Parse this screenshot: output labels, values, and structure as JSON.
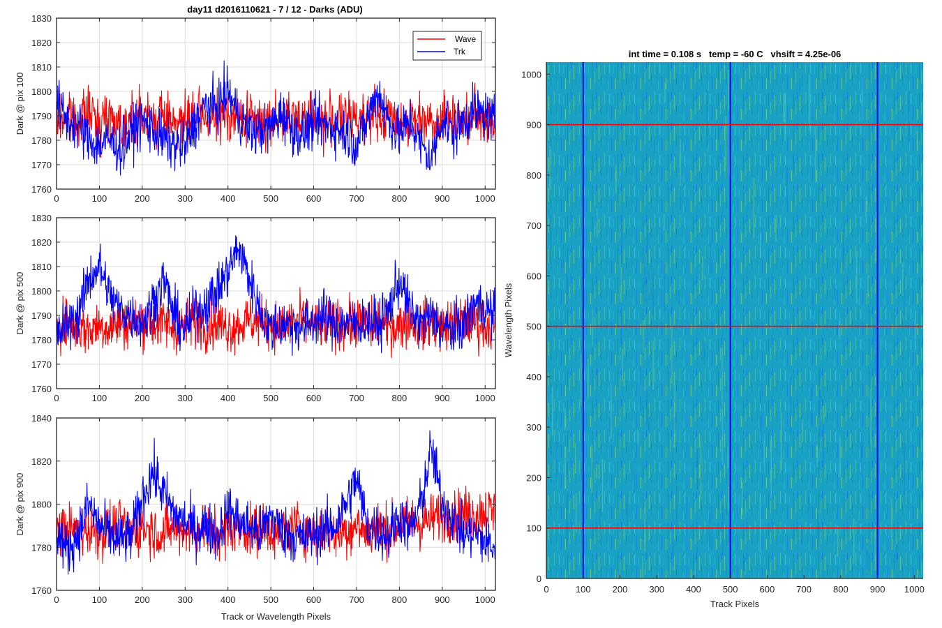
{
  "figure_title": "day11 d2016110621 - 7 / 12 - Darks (ADU)",
  "chart_data": [
    {
      "type": "line",
      "title": "day11 d2016110621 - 7 / 12 - Darks (ADU)",
      "xlabel": "",
      "ylabel": "Dark @ pix 100",
      "xlim": [
        0,
        1024
      ],
      "ylim": [
        1760,
        1830
      ],
      "xticks": [
        0,
        100,
        200,
        300,
        400,
        500,
        600,
        700,
        800,
        900,
        1000
      ],
      "yticks": [
        1760,
        1770,
        1780,
        1790,
        1800,
        1810,
        1820,
        1830
      ],
      "grid": true,
      "legend": "top-right",
      "series": [
        {
          "name": "Wave",
          "color": "#ff0000",
          "x": [
            0,
            25,
            50,
            75,
            100,
            125,
            150,
            175,
            200,
            225,
            250,
            275,
            300,
            325,
            350,
            375,
            400,
            425,
            450,
            475,
            500,
            525,
            550,
            575,
            600,
            625,
            650,
            675,
            700,
            725,
            750,
            775,
            800,
            825,
            850,
            875,
            900,
            925,
            950,
            975,
            1000,
            1023
          ],
          "y": [
            1787,
            1790,
            1789,
            1791,
            1788,
            1790,
            1787,
            1789,
            1791,
            1788,
            1790,
            1789,
            1787,
            1790,
            1788,
            1789,
            1791,
            1788,
            1790,
            1787,
            1789,
            1790,
            1788,
            1791,
            1789,
            1787,
            1790,
            1788,
            1789,
            1791,
            1788,
            1790,
            1789,
            1787,
            1790,
            1788,
            1789,
            1791,
            1788,
            1790,
            1789,
            1788
          ]
        },
        {
          "name": "Trk",
          "color": "#0000ff",
          "x": [
            0,
            25,
            50,
            75,
            100,
            125,
            150,
            175,
            200,
            225,
            250,
            275,
            300,
            325,
            350,
            375,
            400,
            425,
            450,
            475,
            500,
            525,
            550,
            575,
            600,
            625,
            650,
            675,
            700,
            725,
            750,
            775,
            800,
            825,
            850,
            875,
            900,
            925,
            950,
            975,
            1000,
            1023
          ],
          "y": [
            1795,
            1788,
            1786,
            1780,
            1778,
            1780,
            1776,
            1783,
            1788,
            1784,
            1780,
            1778,
            1777,
            1788,
            1795,
            1793,
            1800,
            1790,
            1784,
            1784,
            1785,
            1791,
            1785,
            1782,
            1788,
            1786,
            1785,
            1783,
            1778,
            1788,
            1800,
            1788,
            1782,
            1788,
            1778,
            1772,
            1790,
            1782,
            1788,
            1792,
            1790,
            1787
          ]
        }
      ]
    },
    {
      "type": "line",
      "title": "",
      "xlabel": "",
      "ylabel": "Dark @ pix 500",
      "xlim": [
        0,
        1024
      ],
      "ylim": [
        1760,
        1830
      ],
      "xticks": [
        0,
        100,
        200,
        300,
        400,
        500,
        600,
        700,
        800,
        900,
        1000
      ],
      "yticks": [
        1760,
        1770,
        1780,
        1790,
        1800,
        1810,
        1820,
        1830
      ],
      "grid": true,
      "series": [
        {
          "name": "Wave",
          "color": "#ff0000",
          "x": [
            0,
            25,
            50,
            75,
            100,
            125,
            150,
            175,
            200,
            225,
            250,
            275,
            300,
            325,
            350,
            375,
            400,
            425,
            450,
            475,
            500,
            525,
            550,
            575,
            600,
            625,
            650,
            675,
            700,
            725,
            750,
            775,
            800,
            825,
            850,
            875,
            900,
            925,
            950,
            975,
            1000,
            1023
          ],
          "y": [
            1786,
            1787,
            1785,
            1784,
            1786,
            1785,
            1787,
            1786,
            1788,
            1786,
            1787,
            1785,
            1786,
            1788,
            1786,
            1787,
            1785,
            1786,
            1788,
            1787,
            1786,
            1785,
            1787,
            1788,
            1786,
            1785,
            1787,
            1786,
            1788,
            1786,
            1787,
            1785,
            1786,
            1788,
            1786,
            1787,
            1785,
            1786,
            1788,
            1787,
            1786,
            1785
          ]
        },
        {
          "name": "Trk",
          "color": "#0000ff",
          "x": [
            0,
            25,
            50,
            75,
            100,
            125,
            150,
            175,
            200,
            225,
            250,
            275,
            300,
            325,
            350,
            375,
            400,
            425,
            450,
            475,
            500,
            525,
            550,
            575,
            600,
            625,
            650,
            675,
            700,
            725,
            750,
            775,
            800,
            825,
            850,
            875,
            900,
            925,
            950,
            975,
            1000,
            1023
          ],
          "y": [
            1782,
            1786,
            1790,
            1805,
            1810,
            1798,
            1792,
            1790,
            1787,
            1795,
            1805,
            1790,
            1784,
            1792,
            1795,
            1800,
            1808,
            1818,
            1805,
            1792,
            1784,
            1787,
            1786,
            1785,
            1788,
            1790,
            1786,
            1787,
            1786,
            1788,
            1786,
            1792,
            1805,
            1792,
            1786,
            1790,
            1785,
            1784,
            1786,
            1795,
            1793,
            1790
          ]
        }
      ]
    },
    {
      "type": "line",
      "title": "",
      "xlabel": "Track or Wavelength Pixels",
      "ylabel": "Dark @ pix 900",
      "xlim": [
        0,
        1024
      ],
      "ylim": [
        1760,
        1840
      ],
      "xticks": [
        0,
        100,
        200,
        300,
        400,
        500,
        600,
        700,
        800,
        900,
        1000
      ],
      "yticks": [
        1760,
        1780,
        1800,
        1820,
        1840
      ],
      "grid": true,
      "series": [
        {
          "name": "Wave",
          "color": "#ff0000",
          "x": [
            0,
            25,
            50,
            75,
            100,
            125,
            150,
            175,
            200,
            225,
            250,
            275,
            300,
            325,
            350,
            375,
            400,
            425,
            450,
            475,
            500,
            525,
            550,
            575,
            600,
            625,
            650,
            675,
            700,
            725,
            750,
            775,
            800,
            825,
            850,
            875,
            900,
            925,
            950,
            975,
            1000,
            1023
          ],
          "y": [
            1790,
            1788,
            1787,
            1789,
            1786,
            1788,
            1790,
            1787,
            1789,
            1788,
            1786,
            1790,
            1788,
            1787,
            1789,
            1786,
            1788,
            1790,
            1787,
            1789,
            1788,
            1786,
            1790,
            1788,
            1787,
            1789,
            1786,
            1788,
            1790,
            1787,
            1789,
            1788,
            1790,
            1792,
            1791,
            1793,
            1795,
            1794,
            1796,
            1795,
            1797,
            1796
          ]
        },
        {
          "name": "Trk",
          "color": "#0000ff",
          "x": [
            0,
            25,
            50,
            75,
            100,
            125,
            150,
            175,
            200,
            225,
            250,
            275,
            300,
            325,
            350,
            375,
            400,
            425,
            450,
            475,
            500,
            525,
            550,
            575,
            600,
            625,
            650,
            675,
            700,
            725,
            750,
            775,
            800,
            825,
            850,
            875,
            900,
            925,
            950,
            975,
            1000,
            1023
          ],
          "y": [
            1788,
            1778,
            1786,
            1800,
            1790,
            1786,
            1783,
            1785,
            1803,
            1815,
            1805,
            1795,
            1792,
            1788,
            1790,
            1785,
            1798,
            1792,
            1790,
            1786,
            1795,
            1788,
            1785,
            1784,
            1786,
            1788,
            1790,
            1800,
            1812,
            1790,
            1788,
            1785,
            1795,
            1787,
            1800,
            1826,
            1800,
            1794,
            1785,
            1787,
            1782,
            1780
          ]
        }
      ]
    },
    {
      "type": "heatmap",
      "title": "int time = 0.108 s   temp = -60 C   vhsift = 4.25e-06",
      "xlabel": "Track Pixels",
      "ylabel": "Wavelength Pixels",
      "xlim": [
        0,
        1024
      ],
      "ylim": [
        0,
        1024
      ],
      "xticks": [
        0,
        100,
        200,
        300,
        400,
        500,
        600,
        700,
        800,
        900,
        1000
      ],
      "yticks": [
        0,
        100,
        200,
        300,
        400,
        500,
        600,
        700,
        800,
        900,
        1000
      ],
      "colormap": "parula",
      "vertical_markers": {
        "color": "#0000ff",
        "x": [
          100,
          500,
          900
        ]
      },
      "horizontal_markers": {
        "color": "#ff0000",
        "y": [
          100,
          500,
          900
        ]
      }
    }
  ]
}
